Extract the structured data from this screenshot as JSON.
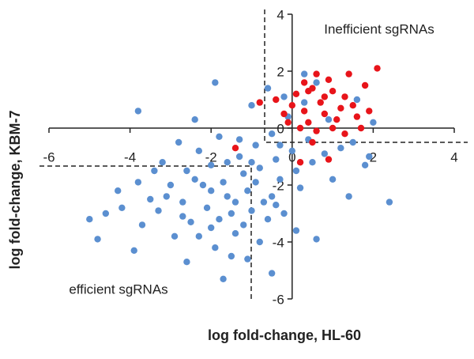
{
  "chart_data": {
    "type": "scatter",
    "xlabel": "log fold-change, HL-60",
    "ylabel": "log fold-change, KBM-7",
    "annotations": [
      "Inefficient sgRNAs",
      "efficient sgRNAs"
    ],
    "xlim": [
      -6,
      4
    ],
    "ylim": [
      -6,
      4
    ],
    "xticks": [
      -6,
      -4,
      -2,
      0,
      2,
      4
    ],
    "yticks": [
      4,
      2,
      0,
      -2,
      -4,
      -6
    ],
    "series": [
      {
        "color": "#5b8fd0",
        "x": [
          -5.0,
          -4.6,
          -4.2,
          -4.3,
          -3.8,
          -3.5,
          -3.7,
          -3.2,
          -3.0,
          -3.3,
          -2.8,
          -2.6,
          -2.7,
          -2.5,
          -2.9,
          -2.3,
          -2.2,
          -2.0,
          -2.1,
          -2.0,
          -1.9,
          -1.8,
          -1.7,
          -1.6,
          -1.5,
          -1.4,
          -1.5,
          -1.3,
          -1.2,
          -1.1,
          -1.0,
          -1.2,
          -0.9,
          -0.8,
          -0.7,
          -0.6,
          -0.8,
          -0.5,
          -0.4,
          -0.3,
          -0.5,
          -0.2,
          -0.1,
          0.0,
          0.1,
          0.2,
          0.3,
          0.4,
          0.5,
          0.6,
          0.8,
          1.0,
          1.2,
          1.5,
          1.8,
          2.4,
          1.9,
          -1.9,
          -0.6,
          -0.2,
          0.3,
          -3.8,
          -2.4,
          -1.0,
          -4.8,
          -3.9,
          -2.6,
          -1.7,
          -0.5,
          0.6,
          1.4,
          -3.4,
          -2.4,
          -1.4,
          -0.9,
          -2.0,
          -1.6,
          -1.0,
          -0.4,
          -2.7,
          -1.8,
          0.9,
          1.6,
          -1.3,
          -0.3,
          2.0,
          -3.1,
          -2.3,
          0.1,
          -1.1
        ],
        "values": [
          -3.2,
          -3.0,
          -2.8,
          -2.2,
          -1.9,
          -2.5,
          -3.4,
          -1.2,
          -2.0,
          -2.9,
          -0.5,
          -1.5,
          -2.6,
          -3.3,
          -3.8,
          -0.8,
          -2.0,
          -1.3,
          -2.8,
          -3.5,
          -4.2,
          -0.3,
          -1.9,
          -2.4,
          -3.0,
          -3.7,
          -4.5,
          -1.0,
          -1.6,
          -2.2,
          -2.9,
          -3.4,
          -0.6,
          -1.4,
          -2.6,
          -3.2,
          -4.0,
          -0.2,
          -1.1,
          -1.8,
          -2.4,
          -3.0,
          0.4,
          -0.8,
          -1.5,
          -2.1,
          0.9,
          -0.4,
          -1.2,
          1.6,
          -0.9,
          -1.8,
          -0.7,
          -0.5,
          -1.3,
          -2.6,
          -1.0,
          1.6,
          1.4,
          1.1,
          1.9,
          0.6,
          0.3,
          0.8,
          -3.9,
          -4.3,
          -4.7,
          -5.3,
          -5.1,
          -3.9,
          -2.4,
          -1.5,
          -1.8,
          -2.6,
          -1.9,
          -2.2,
          -1.2,
          -1.2,
          -2.7,
          -3.1,
          -3.2,
          0.3,
          1.0,
          -0.4,
          -0.6,
          0.2,
          -2.4,
          -3.8,
          -3.6,
          -4.6
        ]
      },
      {
        "color": "#e8141a",
        "x": [
          0.1,
          0.3,
          0.5,
          0.7,
          0.9,
          1.1,
          1.3,
          0.2,
          0.4,
          0.6,
          0.8,
          1.0,
          1.2,
          1.4,
          1.6,
          1.8,
          2.1,
          0.0,
          -0.2,
          -0.4,
          0.5,
          0.9,
          0.2,
          -1.4,
          -0.8,
          1.7,
          1.0,
          0.6,
          1.3,
          0.3,
          -0.1,
          1.5,
          0.8,
          1.9,
          0.4
        ],
        "values": [
          1.2,
          0.6,
          1.4,
          0.9,
          1.7,
          0.3,
          1.1,
          0.0,
          0.2,
          -0.1,
          0.5,
          1.3,
          0.7,
          1.9,
          0.4,
          1.5,
          2.1,
          0.8,
          0.5,
          1.0,
          -0.5,
          -1.1,
          -1.2,
          -0.7,
          0.9,
          0.0,
          0.0,
          1.9,
          -0.2,
          1.6,
          0.2,
          0.8,
          1.1,
          0.6,
          1.3
        ]
      }
    ]
  }
}
